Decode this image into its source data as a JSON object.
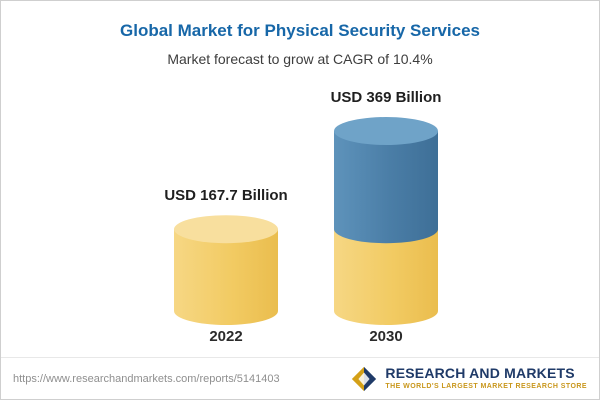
{
  "header": {
    "title": "Global Market for Physical Security Services",
    "subtitle": "Market forecast to grow at CAGR of 10.4%"
  },
  "chart_data": {
    "type": "bar",
    "subtype": "cylinder",
    "title": "Global Market for Physical Security Services",
    "subtitle": "Market forecast to grow at CAGR of 10.4%",
    "cagr": "10.4%",
    "unit": "USD Billion",
    "categories": [
      "2022",
      "2030"
    ],
    "values": [
      167.7,
      369
    ],
    "value_labels": [
      "USD 167.7 Billion",
      "USD 369 Billion"
    ],
    "ylim": [
      0,
      410
    ],
    "grid": false,
    "legend": false,
    "notes": "2030 cylinder is stacked: yellow base equals the 2022 value, blue top segment shows forecast growth",
    "colors": {
      "base_body": "#F1C95F",
      "base_top": "#F8DF9E",
      "growth_body": "#4A7DA6",
      "growth_top": "#6FA3C8",
      "title": "#1767A8"
    }
  },
  "footer": {
    "url": "https://www.researchandmarkets.com/reports/5141403",
    "brand": "RESEARCH AND MARKETS",
    "tagline": "THE WORLD'S LARGEST MARKET RESEARCH STORE"
  }
}
